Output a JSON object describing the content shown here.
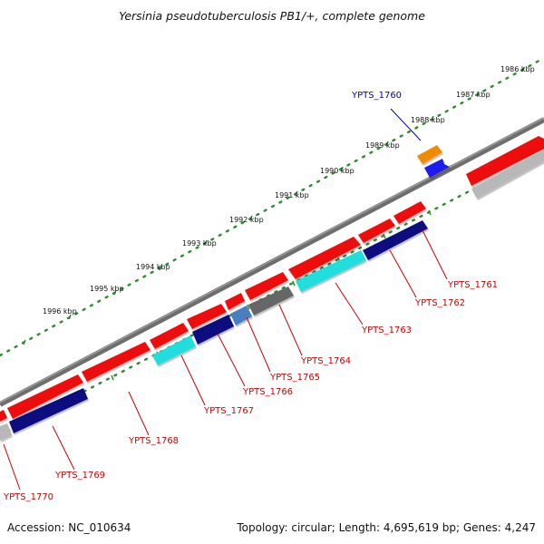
{
  "title": "Yersinia pseudotuberculosis PB1/+, complete genome",
  "accession": "Accession: NC_010634",
  "summary": "Topology: circular; Length: 4,695,619 bp; Genes: 4,247",
  "ticks": [
    {
      "label": "1986 kbp"
    },
    {
      "label": "1987 kbp"
    },
    {
      "label": "1988 kbp"
    },
    {
      "label": "1989 kbp"
    },
    {
      "label": "1990 kbp"
    },
    {
      "label": "1991 kbp"
    },
    {
      "label": "1992 kbp"
    },
    {
      "label": "1993 kbp"
    },
    {
      "label": "1994 kbp"
    },
    {
      "label": "1995 kbp"
    },
    {
      "label": "1996 kbp"
    }
  ],
  "gene_labels": [
    {
      "id": "YPTS_1760",
      "color": "#0000cc"
    },
    {
      "id": "YPTS_1761",
      "color": "#cc0000"
    },
    {
      "id": "YPTS_1762",
      "color": "#cc0000"
    },
    {
      "id": "YPTS_1763",
      "color": "#cc0000"
    },
    {
      "id": "YPTS_1764",
      "color": "#cc0000"
    },
    {
      "id": "YPTS_1765",
      "color": "#cc0000"
    },
    {
      "id": "YPTS_1766",
      "color": "#cc0000"
    },
    {
      "id": "YPTS_1767",
      "color": "#cc0000"
    },
    {
      "id": "YPTS_1768",
      "color": "#cc0000"
    },
    {
      "id": "YPTS_1769",
      "color": "#cc0000"
    },
    {
      "id": "YPTS_1770",
      "color": "#cc0000"
    }
  ],
  "colors": {
    "backbone": "#6e6e6e",
    "tick_dots": "#2e8b2e",
    "gene_red": "#ee1111",
    "gene_navy": "#101080",
    "gene_cyan": "#22dddd",
    "gene_gray": "#666666",
    "gene_steel": "#4a7fc0",
    "gene_orange": "#f28a00",
    "gene_blue": "#1a1aee",
    "gene_lightgray": "#b8b8b8"
  }
}
